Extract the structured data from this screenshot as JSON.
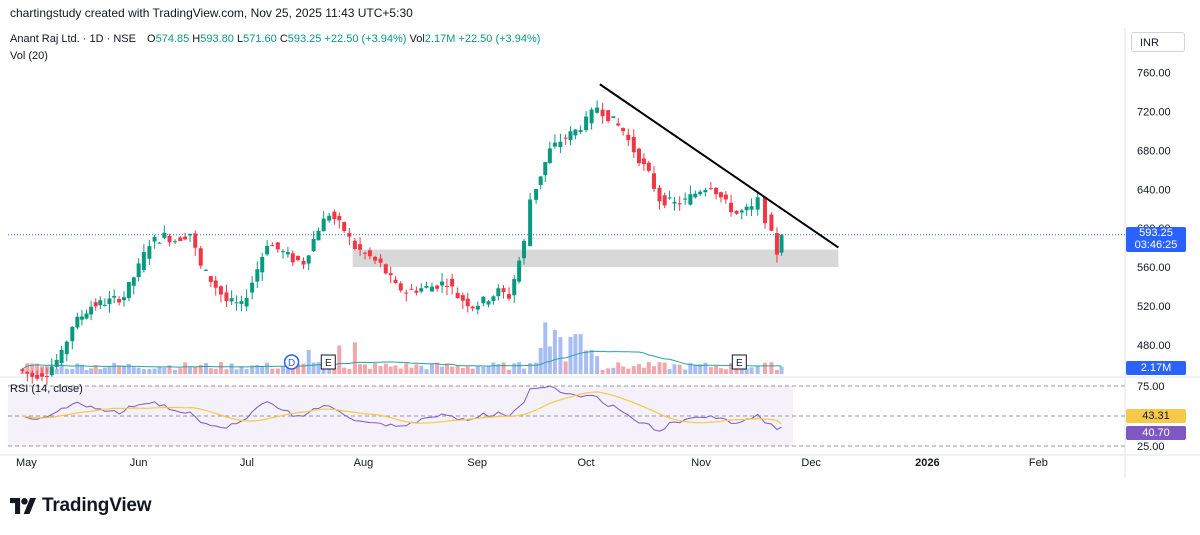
{
  "caption": "chartingstudy created with TradingView.com, Nov 25, 2025 11:43 UTC+5:30",
  "legend": {
    "symbol": "Anant Raj Ltd. · 1D · NSE",
    "o_label": "O",
    "o": "574.85",
    "h_label": "H",
    "h": "593.80",
    "l_label": "L",
    "l": "571.60",
    "c_label": "C",
    "c": "593.25",
    "chg": "+22.50 (+3.94%)",
    "vol_label": "Vol",
    "vol": "2.17M",
    "vol_chg": "+22.50 (+3.94%)"
  },
  "vol_indicator": "Vol (20)",
  "rsi_indicator": "RSI (14, close)",
  "currency": "INR",
  "brand": "TradingView",
  "tags": {
    "last_price": "593.25",
    "countdown": "03:46:25",
    "volume": "2.17M",
    "rsi_ma": "43.31",
    "rsi": "40.70"
  },
  "colors": {
    "up": "#089981",
    "down": "#f23645",
    "blue_tag": "#2962ff",
    "vol_up": "#a9bdf5",
    "vol_down": "#f5a5ac",
    "vol_ma": "#26a69a",
    "rsi_line": "#7e57c2",
    "rsi_ma": "#f7c948",
    "zone": "#d8d8d8",
    "trendline": "#000000"
  },
  "chart_data": {
    "type": "candlestick",
    "symbol": "Anant Raj Ltd.",
    "interval": "1D",
    "exchange": "NSE",
    "x_axis_labels": [
      "May",
      "Jun",
      "Jul",
      "Aug",
      "Sep",
      "Oct",
      "Nov",
      "Dec",
      "2026",
      "Feb"
    ],
    "y_axis_ticks": [
      "760.00",
      "720.00",
      "680.00",
      "640.00",
      "600.00",
      "560.00",
      "520.00",
      "480.00"
    ],
    "y_range": [
      450,
      775
    ],
    "rsi_ticks": [
      "75.00",
      "25.00"
    ],
    "rsi_range": [
      20,
      80
    ],
    "support_zone": [
      560,
      578
    ],
    "trendline": {
      "from_date": "2025-10-06",
      "from_price": 748,
      "to_date": "2025-12-10",
      "to_price": 580
    },
    "event_markers": [
      {
        "label": "D",
        "date": "2025-07-14"
      },
      {
        "label": "E",
        "date": "2025-07-24"
      },
      {
        "label": "E",
        "date": "2025-11-13"
      }
    ],
    "last_close": 593.25,
    "last_volume": "2.17M",
    "rsi_last": 40.7,
    "rsi_ma_last": 43.31,
    "price_path": [
      [
        "2025-05-01",
        455
      ],
      [
        "2025-05-05",
        448
      ],
      [
        "2025-05-09",
        452
      ],
      [
        "2025-05-13",
        470
      ],
      [
        "2025-05-16",
        500
      ],
      [
        "2025-05-21",
        520
      ],
      [
        "2025-05-26",
        525
      ],
      [
        "2025-05-30",
        530
      ],
      [
        "2025-06-03",
        560
      ],
      [
        "2025-06-06",
        585
      ],
      [
        "2025-06-10",
        592
      ],
      [
        "2025-06-13",
        588
      ],
      [
        "2025-06-17",
        595
      ],
      [
        "2025-06-20",
        560
      ],
      [
        "2025-06-24",
        540
      ],
      [
        "2025-06-27",
        525
      ],
      [
        "2025-07-01",
        520
      ],
      [
        "2025-07-04",
        545
      ],
      [
        "2025-07-08",
        585
      ],
      [
        "2025-07-11",
        578
      ],
      [
        "2025-07-15",
        568
      ],
      [
        "2025-07-18",
        565
      ],
      [
        "2025-07-22",
        600
      ],
      [
        "2025-07-25",
        615
      ],
      [
        "2025-07-29",
        598
      ],
      [
        "2025-08-01",
        580
      ],
      [
        "2025-08-05",
        570
      ],
      [
        "2025-08-08",
        562
      ],
      [
        "2025-08-12",
        540
      ],
      [
        "2025-08-15",
        535
      ],
      [
        "2025-08-19",
        538
      ],
      [
        "2025-08-22",
        540
      ],
      [
        "2025-08-26",
        545
      ],
      [
        "2025-08-29",
        530
      ],
      [
        "2025-09-02",
        520
      ],
      [
        "2025-09-05",
        525
      ],
      [
        "2025-09-09",
        535
      ],
      [
        "2025-09-12",
        530
      ],
      [
        "2025-09-16",
        585
      ],
      [
        "2025-09-18",
        630
      ],
      [
        "2025-09-23",
        680
      ],
      [
        "2025-09-26",
        690
      ],
      [
        "2025-09-30",
        700
      ],
      [
        "2025-10-03",
        710
      ],
      [
        "2025-10-06",
        725
      ],
      [
        "2025-10-09",
        715
      ],
      [
        "2025-10-13",
        700
      ],
      [
        "2025-10-16",
        680
      ],
      [
        "2025-10-20",
        655
      ],
      [
        "2025-10-23",
        630
      ],
      [
        "2025-10-27",
        625
      ],
      [
        "2025-10-30",
        628
      ],
      [
        "2025-11-03",
        640
      ],
      [
        "2025-11-06",
        645
      ],
      [
        "2025-11-10",
        625
      ],
      [
        "2025-11-13",
        615
      ],
      [
        "2025-11-17",
        620
      ],
      [
        "2025-11-19",
        628
      ],
      [
        "2025-11-21",
        610
      ],
      [
        "2025-11-24",
        575
      ],
      [
        "2025-11-25",
        593.25
      ]
    ]
  }
}
